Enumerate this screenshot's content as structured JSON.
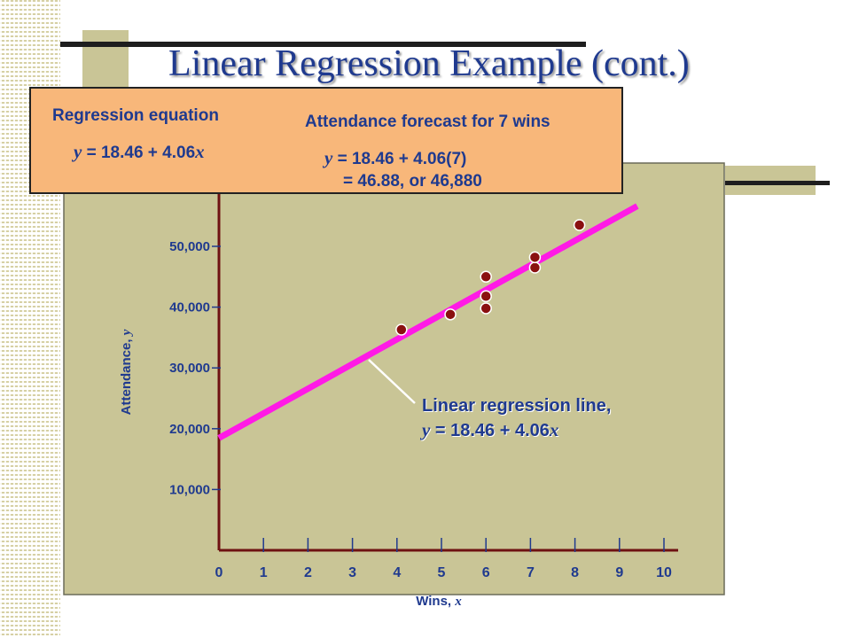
{
  "slide": {
    "title": "Linear Regression Example (cont.)"
  },
  "callout": {
    "equation_label": "Regression equation",
    "equation_var": "y",
    "equation_text": "= 18.46 + 4.06",
    "equation_x": "x",
    "forecast_label": "Attendance forecast for 7 wins",
    "forecast_var": "y",
    "forecast_line1": "= 18.46 + 4.06(7)",
    "forecast_line2": "= 46.88, or 46,880"
  },
  "annotation": {
    "line1": "Linear regression line,",
    "var": "y",
    "eq": "= 18.46 + 4.06",
    "x": "x"
  },
  "chart_data": {
    "type": "scatter",
    "xlabel": "Wins,",
    "xlabel_var": "x",
    "ylabel": "Attendance,",
    "ylabel_var": "y",
    "xlim": [
      0,
      10
    ],
    "ylim": [
      0,
      50000
    ],
    "x_ticks": [
      0,
      1,
      2,
      3,
      4,
      5,
      6,
      7,
      8,
      9,
      10
    ],
    "y_ticks": [
      10000,
      20000,
      30000,
      40000,
      50000
    ],
    "y_tick_labels": [
      "10,000",
      "20,000",
      "30,000",
      "40,000",
      "50,000"
    ],
    "points": [
      {
        "x": 4.1,
        "y": 36300
      },
      {
        "x": 5.2,
        "y": 38800
      },
      {
        "x": 6.0,
        "y": 39800
      },
      {
        "x": 6.0,
        "y": 41800
      },
      {
        "x": 6.0,
        "y": 45000
      },
      {
        "x": 7.1,
        "y": 46500
      },
      {
        "x": 7.1,
        "y": 48200
      },
      {
        "x": 8.1,
        "y": 53500
      }
    ],
    "regression": {
      "intercept": 18.46,
      "slope": 4.06,
      "x_range": [
        0,
        9.4
      ]
    },
    "colors": {
      "panel": "#c9c596",
      "axis": "#6e1212",
      "points": "#8a1010",
      "regression_line": "#ff1ae6",
      "text": "#1f3a8f"
    }
  }
}
